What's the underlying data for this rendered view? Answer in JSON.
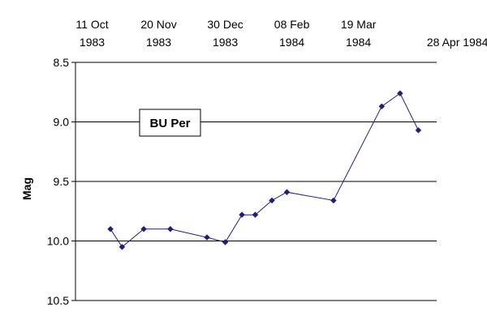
{
  "chart_data": {
    "type": "scatter",
    "title": "",
    "ylabel": "Mag",
    "xlabel": "",
    "x_axis_position": "top",
    "y_inverted": true,
    "ylim": [
      8.5,
      10.5
    ],
    "yticks": [
      "8.5",
      "9.0",
      "9.5",
      "10.0",
      "10.5"
    ],
    "xlim": [
      "1983-10-01",
      "1984-05-05"
    ],
    "xticks": [
      {
        "date": "1983-10-11",
        "line1": "11 Oct",
        "line2": "1983"
      },
      {
        "date": "1983-11-20",
        "line1": "20 Nov",
        "line2": "1983"
      },
      {
        "date": "1983-12-30",
        "line1": "30 Dec",
        "line2": "1983"
      },
      {
        "date": "1984-02-08",
        "line1": "08 Feb",
        "line2": "1984"
      },
      {
        "date": "1984-03-19",
        "line1": "19 Mar",
        "line2": "1984"
      },
      {
        "date": "1984-04-28",
        "line1": "28 Apr 1984",
        "line2": ""
      }
    ],
    "grid": "horizontal",
    "marker": "diamond",
    "color": "#1f1f7a",
    "annotation": "BU Per",
    "points": [
      {
        "x": "1983-10-22",
        "y": 9.9
      },
      {
        "x": "1983-10-29",
        "y": 10.05
      },
      {
        "x": "1983-11-11",
        "y": 9.9
      },
      {
        "x": "1983-11-27",
        "y": 9.9
      },
      {
        "x": "1983-12-19",
        "y": 9.97
      },
      {
        "x": "1983-12-30",
        "y": 10.01
      },
      {
        "x": "1984-01-09",
        "y": 9.78
      },
      {
        "x": "1984-01-17",
        "y": 9.78
      },
      {
        "x": "1984-01-27",
        "y": 9.66
      },
      {
        "x": "1984-02-05",
        "y": 9.59
      },
      {
        "x": "1984-03-04",
        "y": 9.66
      },
      {
        "x": "1984-04-02",
        "y": 8.87
      },
      {
        "x": "1984-04-13",
        "y": 8.76
      },
      {
        "x": "1984-04-24",
        "y": 9.07
      }
    ]
  }
}
